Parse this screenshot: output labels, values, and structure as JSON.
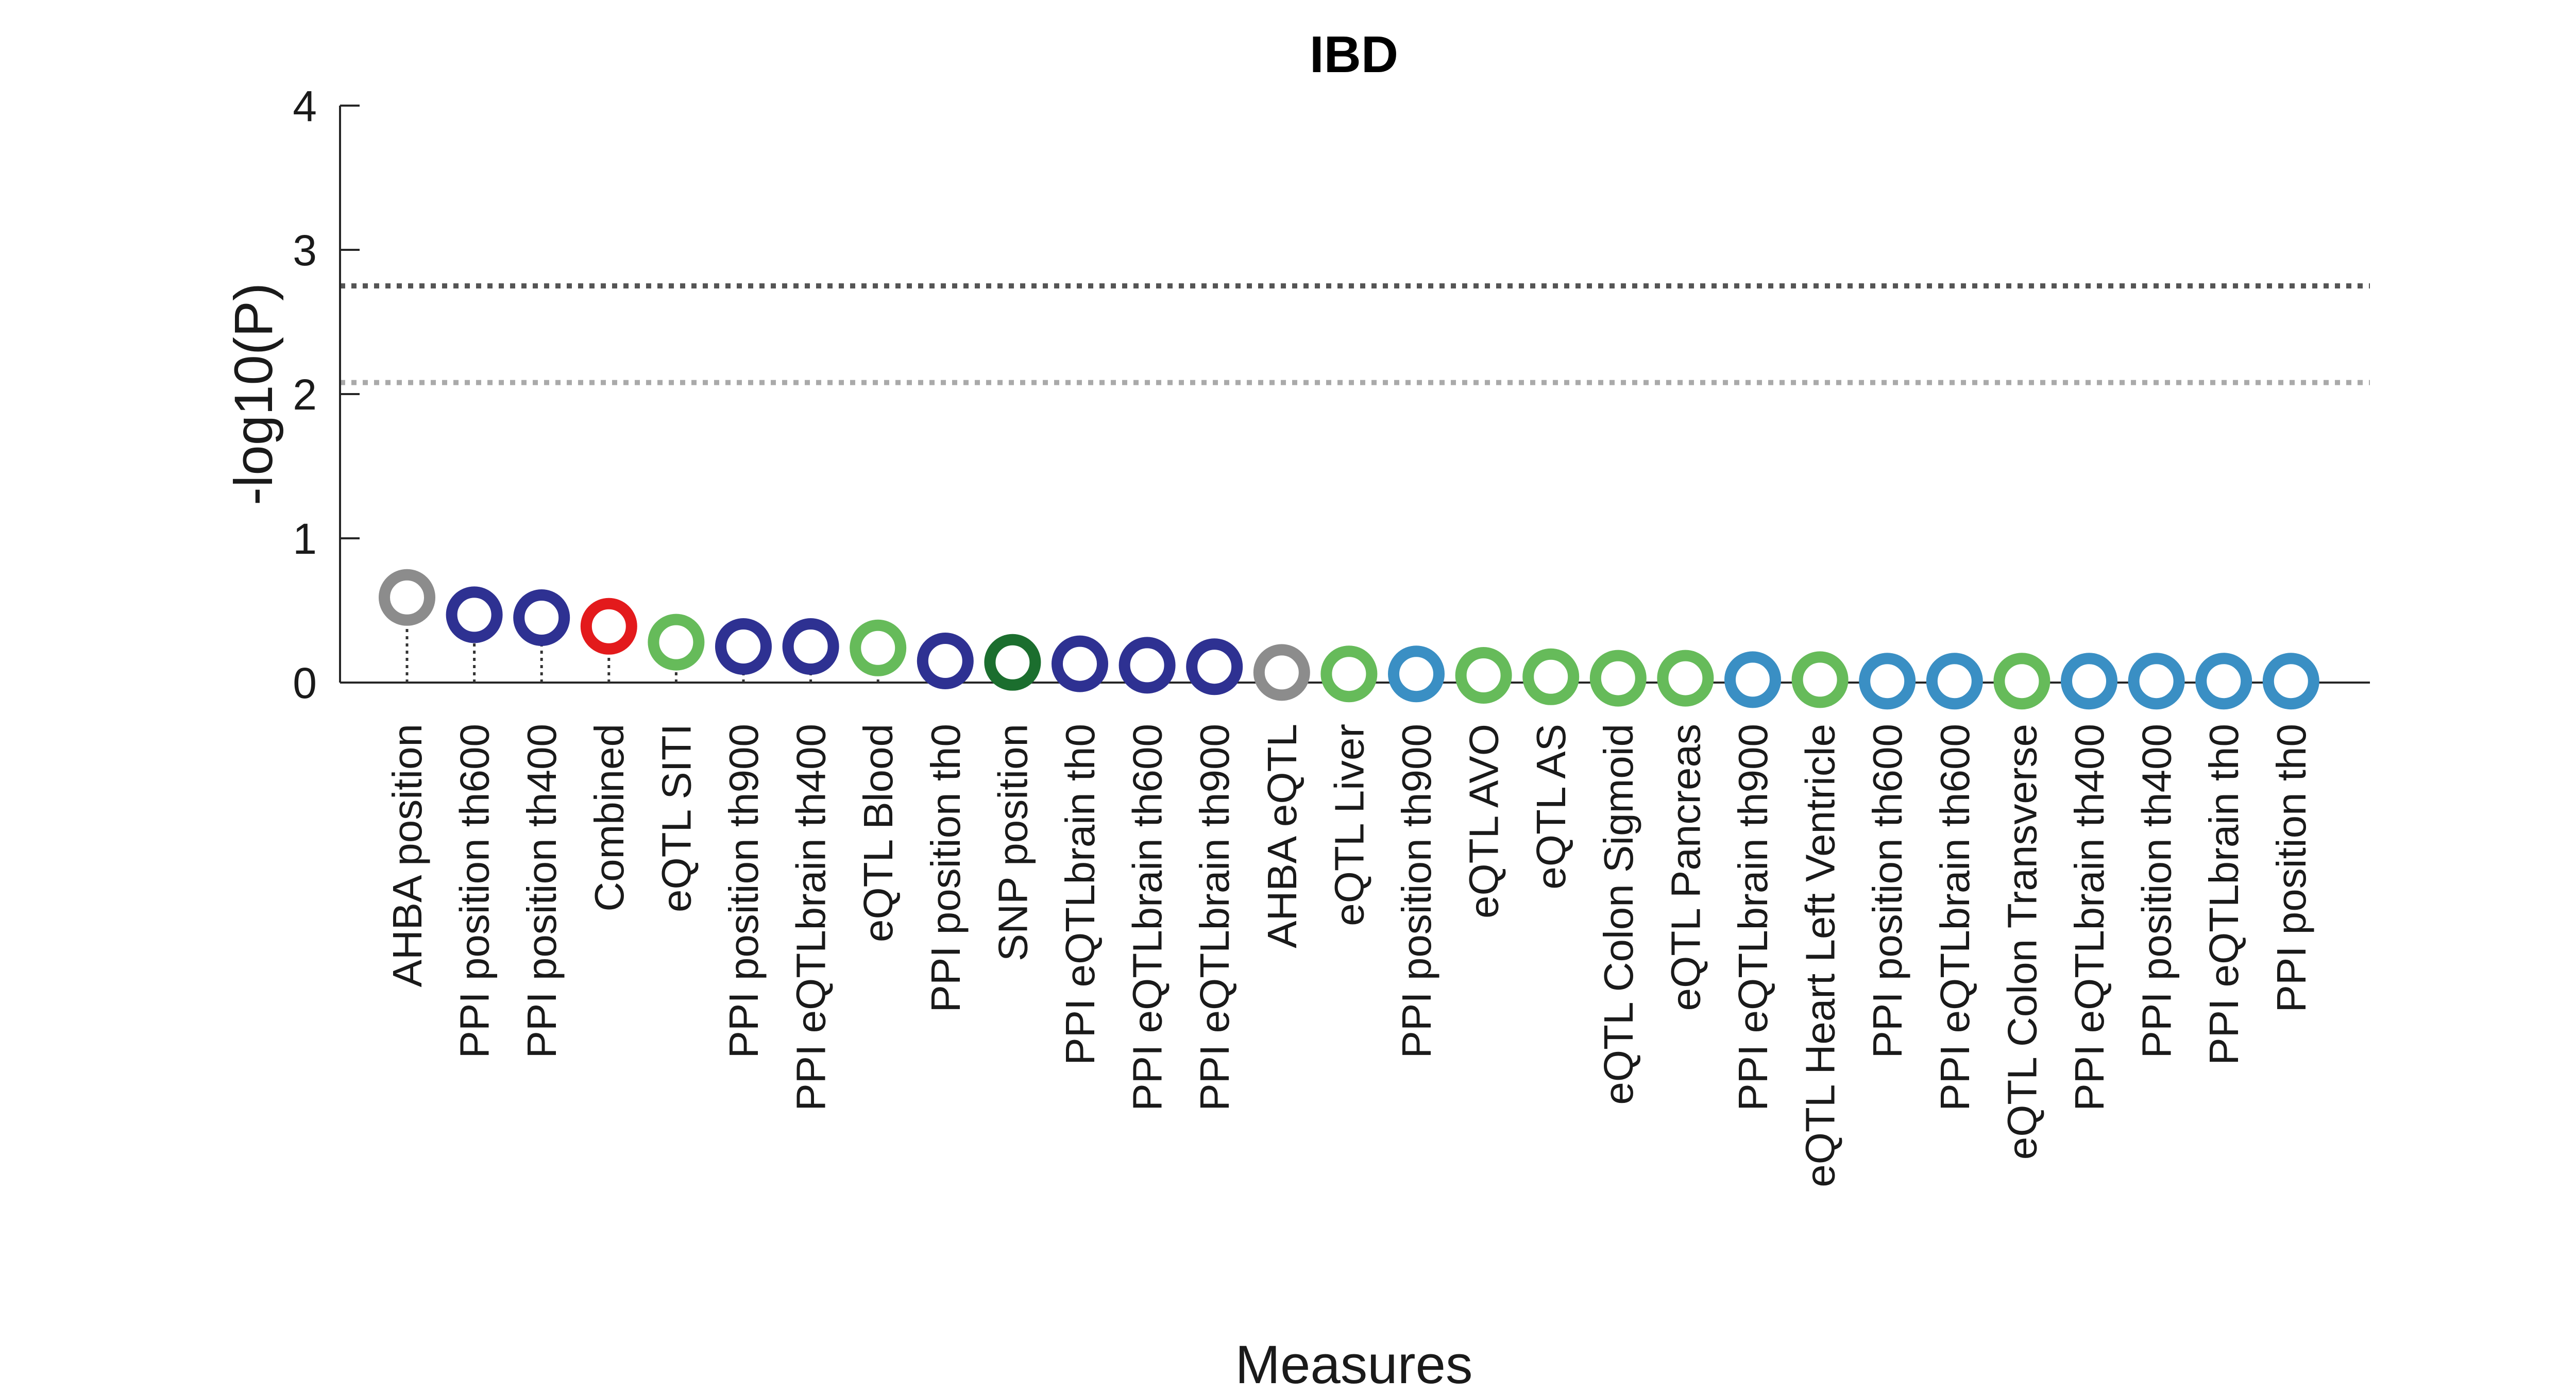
{
  "chart_data": {
    "type": "scatter",
    "title": "IBD",
    "xlabel": "Measures",
    "ylabel": "-log10(P)",
    "ylim": [
      0,
      4
    ],
    "yticks": [
      "0",
      "1",
      "2",
      "3",
      "4"
    ],
    "grid": false,
    "legend": "none",
    "thresholds": [
      {
        "value": 2.75,
        "color": "#555555",
        "style": "dotted"
      },
      {
        "value": 2.08,
        "color": "#aaaaaa",
        "style": "dotted"
      }
    ],
    "categories": [
      "AHBA position",
      "PPI position th600",
      "PPI position th400",
      "Combined",
      "eQTL SITI",
      "PPI position th900",
      "PPI eQTLbrain th400",
      "eQTL Blood",
      "PPI position th0",
      "SNP position",
      "PPI eQTLbrain th0",
      "PPI eQTLbrain th600",
      "PPI eQTLbrain th900",
      "AHBA eQTL",
      "eQTL Liver",
      "PPI position th900",
      "eQTL AVO",
      "eQTL AS",
      "eQTL Colon Sigmoid",
      "eQTL Pancreas",
      "PPI eQTLbrain th900",
      "eQTL Heart Left Ventricle",
      "PPI position th600",
      "PPI eQTLbrain th600",
      "eQTL Colon Transverse",
      "PPI eQTLbrain th400",
      "PPI position th400",
      "PPI eQTLbrain th0",
      "PPI position th0"
    ],
    "values": [
      0.59,
      0.47,
      0.45,
      0.39,
      0.28,
      0.25,
      0.25,
      0.24,
      0.15,
      0.14,
      0.13,
      0.12,
      0.11,
      0.07,
      0.06,
      0.06,
      0.05,
      0.04,
      0.03,
      0.03,
      0.02,
      0.02,
      0.01,
      0.01,
      0.01,
      0.01,
      0.01,
      0.01,
      0.01
    ],
    "colors": [
      "#8c8c8c",
      "#2e3192",
      "#2e3192",
      "#e31a1c",
      "#66bb5a",
      "#2e3192",
      "#2e3192",
      "#66bb5a",
      "#2e3192",
      "#1b6e2e",
      "#2e3192",
      "#2e3192",
      "#2e3192",
      "#8c8c8c",
      "#66bb5a",
      "#3a8fc4",
      "#66bb5a",
      "#66bb5a",
      "#66bb5a",
      "#66bb5a",
      "#3a8fc4",
      "#66bb5a",
      "#3a8fc4",
      "#3a8fc4",
      "#66bb5a",
      "#3a8fc4",
      "#3a8fc4",
      "#3a8fc4",
      "#3a8fc4"
    ]
  }
}
